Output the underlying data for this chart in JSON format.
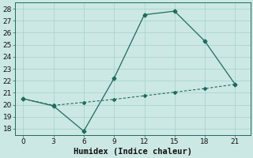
{
  "xlabel": "Humidex (Indice chaleur)",
  "x_line1": [
    0,
    3,
    6,
    9,
    12,
    15,
    18,
    21
  ],
  "y_line1": [
    20.5,
    19.9,
    17.8,
    22.2,
    27.5,
    27.8,
    25.3,
    21.7
  ],
  "x_line2": [
    0,
    3,
    6,
    9,
    12,
    15,
    18,
    21
  ],
  "y_line2": [
    20.5,
    19.95,
    20.2,
    20.45,
    20.75,
    21.05,
    21.35,
    21.7
  ],
  "line_color": "#1f6b5e",
  "bg_color": "#cce8e4",
  "grid_color": "#aad4cf",
  "ylim": [
    17.5,
    28.5
  ],
  "yticks": [
    18,
    19,
    20,
    21,
    22,
    23,
    24,
    25,
    26,
    27,
    28
  ],
  "xticks": [
    0,
    3,
    6,
    9,
    12,
    15,
    18,
    21
  ],
  "tick_fontsize": 6.5,
  "xlabel_fontsize": 7.5
}
